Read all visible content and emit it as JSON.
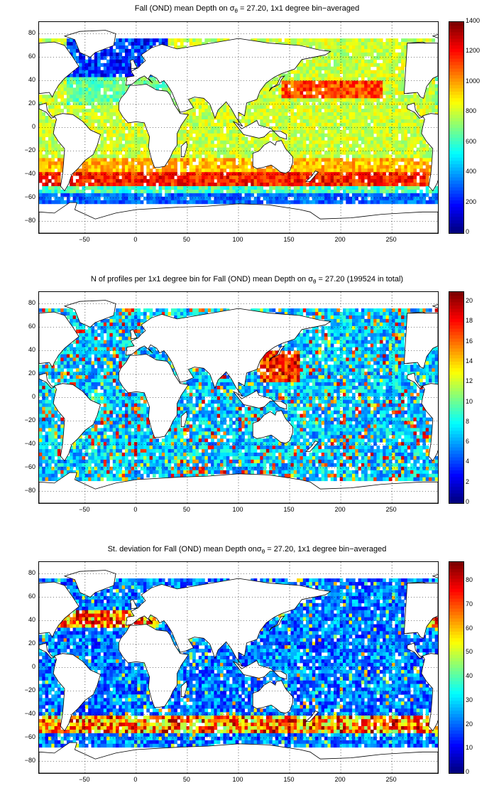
{
  "panels": [
    {
      "title_pre": "Fall (OND) mean Depth on ",
      "title_sym": "σ",
      "title_sub": "θ",
      "title_post": " = 27.20, 1x1 degree bin−averaged",
      "x_ticks": [
        "−50",
        "0",
        "50",
        "100",
        "150",
        "200",
        "250"
      ],
      "y_ticks": [
        "80",
        "60",
        "40",
        "20",
        "0",
        "−20",
        "−40",
        "−60",
        "−80"
      ],
      "colorbar_ticks": [
        "1400",
        "1200",
        "1000",
        "800",
        "600",
        "400",
        "200",
        "0"
      ],
      "colorbar_range": [
        0,
        1400
      ],
      "colormap": "jet"
    },
    {
      "title_pre": "N of profiles per 1x1 degree bin for Fall (OND) mean Depth on ",
      "title_sym": "σ",
      "title_sub": "θ",
      "title_post": " = 27.20 (199524 in total)",
      "x_ticks": [
        "−50",
        "0",
        "50",
        "100",
        "150",
        "200",
        "250"
      ],
      "y_ticks": [
        "80",
        "60",
        "40",
        "20",
        "0",
        "−20",
        "−40",
        "−60",
        "−80"
      ],
      "colorbar_ticks": [
        "20",
        "18",
        "16",
        "14",
        "12",
        "10",
        "8",
        "6",
        "4",
        "2",
        "0"
      ],
      "colorbar_range": [
        0,
        21
      ],
      "colormap": "jet"
    },
    {
      "title_pre": "St. deviation for Fall (OND) mean Depth on",
      "title_sym": "σ",
      "title_sub": "θ",
      "title_post": " = 27.20, 1x1 degree bin−averaged",
      "x_ticks": [
        "−50",
        "0",
        "50",
        "100",
        "150",
        "200",
        "250"
      ],
      "y_ticks": [
        "80",
        "60",
        "40",
        "20",
        "0",
        "−20",
        "−40",
        "−60",
        "−80"
      ],
      "colorbar_ticks": [
        "80",
        "70",
        "60",
        "50",
        "40",
        "30",
        "20",
        "10",
        "0"
      ],
      "colorbar_range": [
        0,
        88
      ],
      "colormap": "jet"
    }
  ],
  "map_extent": {
    "lon": [
      -95,
      295
    ],
    "lat": [
      -90,
      90
    ]
  }
}
